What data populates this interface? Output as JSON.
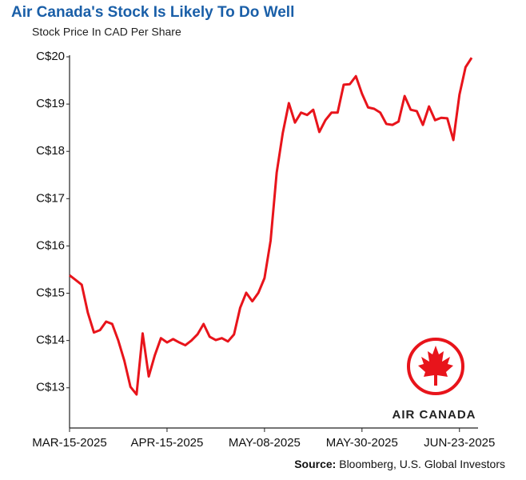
{
  "chart_data": {
    "type": "line",
    "title": "Air Canada's Stock Is Likely To Do Well",
    "subtitle": "Stock Price In CAD Per Share",
    "categories": [
      "MAR-15-2025",
      null,
      null,
      null,
      null,
      null,
      null,
      null,
      null,
      null,
      null,
      null,
      null,
      null,
      null,
      null,
      "APR-15-2025",
      null,
      null,
      null,
      null,
      null,
      null,
      null,
      null,
      null,
      null,
      null,
      null,
      null,
      null,
      null,
      "MAY-08-2025",
      null,
      null,
      null,
      null,
      null,
      null,
      null,
      null,
      null,
      null,
      null,
      null,
      null,
      null,
      null,
      "MAY-30-2025",
      null,
      null,
      null,
      null,
      null,
      null,
      null,
      null,
      null,
      null,
      null,
      null,
      null,
      null,
      null,
      "JUN-23-2025",
      null,
      null
    ],
    "values": [
      15.38,
      15.28,
      15.18,
      14.59,
      14.17,
      14.22,
      14.4,
      14.35,
      14.0,
      13.57,
      13.02,
      12.86,
      14.15,
      13.24,
      13.69,
      14.05,
      13.96,
      14.03,
      13.96,
      13.9,
      14.0,
      14.13,
      14.35,
      14.08,
      14.01,
      14.05,
      13.98,
      14.13,
      14.69,
      15.01,
      14.83,
      15.01,
      15.32,
      16.11,
      17.55,
      18.39,
      19.02,
      18.61,
      18.82,
      18.77,
      18.88,
      18.41,
      18.66,
      18.82,
      18.82,
      19.41,
      19.42,
      19.59,
      19.22,
      18.93,
      18.9,
      18.82,
      18.58,
      18.56,
      18.63,
      19.17,
      18.88,
      18.85,
      18.56,
      18.95,
      18.66,
      18.71,
      18.7,
      18.24,
      19.2,
      19.78,
      19.98
    ],
    "color": "#e8141b",
    "ylim": [
      12.15,
      20.0
    ],
    "yticks": [
      {
        "value": 13,
        "label": "C$13"
      },
      {
        "value": 14,
        "label": "C$14"
      },
      {
        "value": 15,
        "label": "C$15"
      },
      {
        "value": 16,
        "label": "C$16"
      },
      {
        "value": 17,
        "label": "C$17"
      },
      {
        "value": 18,
        "label": "C$18"
      },
      {
        "value": 19,
        "label": "C$19"
      },
      {
        "value": 20,
        "label": "C$20"
      }
    ],
    "logo_text": "AIR CANADA",
    "source_label": "Source:",
    "source": "Bloomberg, U.S. Global Investors"
  }
}
